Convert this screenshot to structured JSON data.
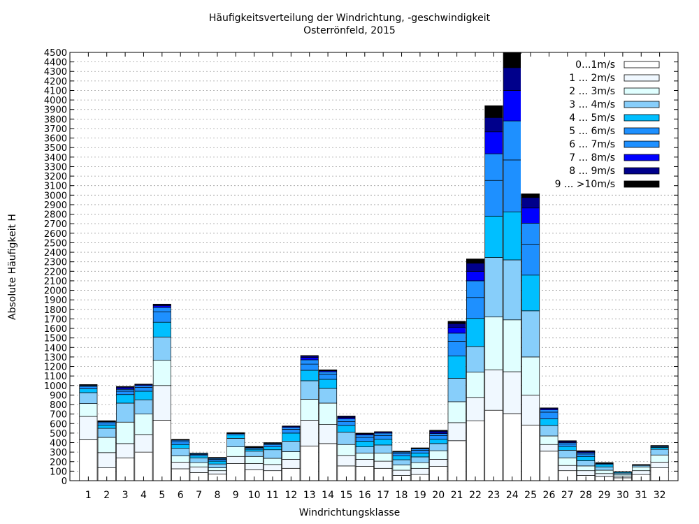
{
  "chart_data": {
    "type": "bar",
    "stacked": true,
    "title": "Häufigkeitsverteilung der Windrichtung, -geschwindigkeit",
    "subtitle": "Osterrönfeld, 2015",
    "xlabel": "Windrichtungsklasse",
    "ylabel": "Absolute Häufigkeit H",
    "ylim": [
      0,
      4500
    ],
    "ytick_step": 100,
    "grid": true,
    "legend_position": "top-right",
    "categories": [
      "1",
      "2",
      "3",
      "4",
      "5",
      "6",
      "7",
      "8",
      "9",
      "10",
      "11",
      "12",
      "13",
      "14",
      "15",
      "16",
      "17",
      "18",
      "19",
      "20",
      "21",
      "22",
      "23",
      "24",
      "25",
      "26",
      "27",
      "28",
      "29",
      "30",
      "31",
      "32"
    ],
    "series": [
      {
        "name": "0...1m/s",
        "color": "#ffffff",
        "values": [
          430,
          135,
          240,
          300,
          635,
          125,
          85,
          70,
          180,
          115,
          105,
          130,
          365,
          390,
          155,
          150,
          130,
          55,
          65,
          150,
          420,
          630,
          740,
          705,
          585,
          310,
          105,
          55,
          45,
          30,
          65,
          135
        ]
      },
      {
        "name": "1 ... 2m/s",
        "color": "#f0f8ff",
        "values": [
          245,
          160,
          150,
          185,
          365,
          70,
          60,
          35,
          75,
          65,
          65,
          95,
          270,
          200,
          110,
          75,
          75,
          55,
          65,
          75,
          190,
          245,
          425,
          440,
          315,
          70,
          55,
          50,
          30,
          20,
          40,
          60
        ]
      },
      {
        "name": "2 ... 3m/s",
        "color": "#e0ffff",
        "values": [
          135,
          160,
          225,
          215,
          265,
          65,
          45,
          30,
          100,
          75,
          65,
          80,
          220,
          225,
          115,
          65,
          85,
          55,
          60,
          90,
          220,
          265,
          555,
          545,
          400,
          90,
          80,
          50,
          35,
          15,
          40,
          75
        ]
      },
      {
        "name": "3 ... 4m/s",
        "color": "#87cefa",
        "values": [
          115,
          95,
          200,
          150,
          245,
          80,
          50,
          40,
          90,
          55,
          90,
          110,
          195,
          155,
          130,
          65,
          85,
          55,
          60,
          75,
          245,
          270,
          625,
          630,
          485,
          110,
          80,
          55,
          35,
          15,
          15,
          60
        ]
      },
      {
        "name": "4 ... 5m/s",
        "color": "#00bfff",
        "values": [
          40,
          35,
          90,
          90,
          155,
          40,
          20,
          30,
          35,
          20,
          30,
          85,
          110,
          95,
          70,
          60,
          60,
          40,
          40,
          45,
          235,
          295,
          435,
          505,
          375,
          70,
          40,
          45,
          25,
          10,
          5,
          20
        ]
      },
      {
        "name": "5 ... 6m/s",
        "color": "#1e90ff",
        "values": [
          25,
          25,
          35,
          40,
          110,
          30,
          15,
          20,
          15,
          15,
          25,
          40,
          65,
          55,
          40,
          40,
          40,
          25,
          30,
          40,
          155,
          220,
          375,
          545,
          325,
          70,
          25,
          25,
          10,
          5,
          5,
          10
        ]
      },
      {
        "name": "6 ... 7m/s",
        "color": "#1e90ff",
        "values": [
          10,
          10,
          20,
          20,
          45,
          15,
          10,
          10,
          5,
          5,
          10,
          20,
          45,
          25,
          30,
          25,
          25,
          15,
          15,
          20,
          85,
          175,
          280,
          410,
          220,
          25,
          15,
          15,
          5,
          0,
          0,
          5
        ]
      },
      {
        "name": "7 ... 8m/s",
        "color": "#0000ff",
        "values": [
          5,
          5,
          15,
          10,
          20,
          5,
          5,
          5,
          5,
          5,
          5,
          10,
          25,
          10,
          15,
          10,
          10,
          5,
          5,
          15,
          60,
          100,
          230,
          320,
          160,
          15,
          10,
          10,
          5,
          0,
          0,
          5
        ]
      },
      {
        "name": "8 ... 9m/s",
        "color": "#00008b",
        "values": [
          5,
          5,
          10,
          5,
          10,
          5,
          0,
          5,
          0,
          5,
          5,
          5,
          15,
          5,
          10,
          5,
          5,
          5,
          5,
          10,
          40,
          85,
          150,
          240,
          110,
          5,
          5,
          5,
          0,
          0,
          0,
          0
        ]
      },
      {
        "name": "9 ... >10m/s",
        "color": "#000000",
        "values": [
          0,
          0,
          5,
          0,
          5,
          0,
          0,
          0,
          0,
          0,
          0,
          0,
          5,
          5,
          5,
          5,
          0,
          0,
          0,
          10,
          25,
          45,
          125,
          170,
          65,
          0,
          5,
          5,
          0,
          0,
          0,
          0
        ]
      }
    ]
  }
}
